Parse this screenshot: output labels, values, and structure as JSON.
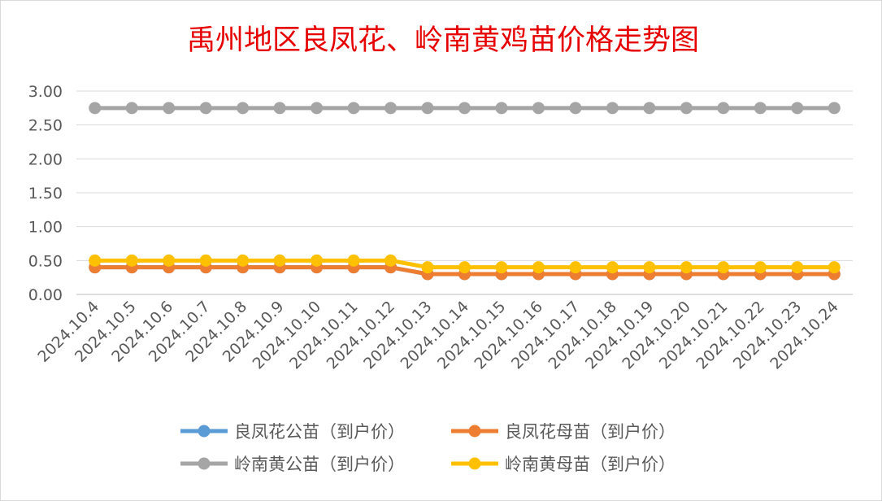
{
  "chart_data": {
    "type": "line",
    "title": "禹州地区良凤花、岭南黄鸡苗价格走势图",
    "title_color": "#e60000",
    "categories": [
      "2024.10.4",
      "2024.10.5",
      "2024.10.6",
      "2024.10.7",
      "2024.10.8",
      "2024.10.9",
      "2024.10.10",
      "2024.10.11",
      "2024.10.12",
      "2024.10.13",
      "2024.10.14",
      "2024.10.15",
      "2024.10.16",
      "2024.10.17",
      "2024.10.18",
      "2024.10.19",
      "2024.10.20",
      "2024.10.21",
      "2024.10.22",
      "2024.10.23",
      "2024.10.24"
    ],
    "ylim": [
      0,
      3
    ],
    "yticks": [
      "0.00",
      "0.50",
      "1.00",
      "1.50",
      "2.00",
      "2.50",
      "3.00"
    ],
    "grid": true,
    "legend_position": "bottom",
    "series": [
      {
        "name": "良凤花公苗（到户价）",
        "color": "#5b9bd5",
        "values": [
          0.4,
          0.4,
          0.4,
          0.4,
          0.4,
          0.4,
          0.4,
          0.4,
          0.4,
          0.3,
          0.3,
          0.3,
          0.3,
          0.3,
          0.3,
          0.3,
          0.3,
          0.3,
          0.3,
          0.3,
          0.3
        ]
      },
      {
        "name": "良凤花母苗（到户价）",
        "color": "#ed7d31",
        "values": [
          0.4,
          0.4,
          0.4,
          0.4,
          0.4,
          0.4,
          0.4,
          0.4,
          0.4,
          0.3,
          0.3,
          0.3,
          0.3,
          0.3,
          0.3,
          0.3,
          0.3,
          0.3,
          0.3,
          0.3,
          0.3
        ]
      },
      {
        "name": "岭南黄公苗（到户价）",
        "color": "#a5a5a5",
        "values": [
          2.75,
          2.75,
          2.75,
          2.75,
          2.75,
          2.75,
          2.75,
          2.75,
          2.75,
          2.75,
          2.75,
          2.75,
          2.75,
          2.75,
          2.75,
          2.75,
          2.75,
          2.75,
          2.75,
          2.75,
          2.75
        ]
      },
      {
        "name": "岭南黄母苗（到户价）",
        "color": "#ffc000",
        "values": [
          0.5,
          0.5,
          0.5,
          0.5,
          0.5,
          0.5,
          0.5,
          0.5,
          0.5,
          0.4,
          0.4,
          0.4,
          0.4,
          0.4,
          0.4,
          0.4,
          0.4,
          0.4,
          0.4,
          0.4,
          0.4
        ]
      }
    ]
  }
}
